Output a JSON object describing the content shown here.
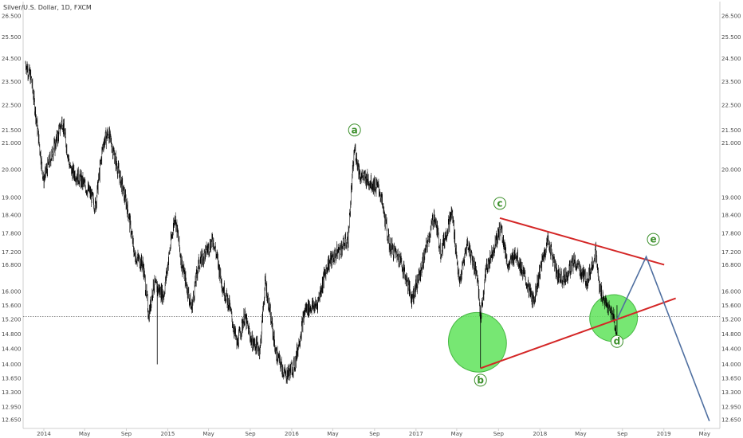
{
  "header": {
    "title": "Silver/U.S. Dollar, 1D, FXCM"
  },
  "colors": {
    "background": "#ffffff",
    "price_bars": "#000000",
    "trendline": "#d42626",
    "projection": "#4f6fa0",
    "ellipse_fill": "#5fe35a",
    "ellipse_stroke": "#47b743",
    "wave_label": "#3b8f2a",
    "price_line": "#444444",
    "axis_border": "#cfcfcf"
  },
  "chart_data": {
    "type": "line",
    "title": "Silver/U.S. Dollar, 1D, FXCM",
    "x_ticks": [
      "2014",
      "May",
      "Sep",
      "2015",
      "May",
      "Sep",
      "2016",
      "May",
      "Sep",
      "2017",
      "May",
      "Sep",
      "2018",
      "May",
      "Sep",
      "2019",
      "May"
    ],
    "x_tick_dates": [
      "2014-01-01",
      "2014-05-01",
      "2014-09-01",
      "2015-01-01",
      "2015-05-01",
      "2015-09-01",
      "2016-01-01",
      "2016-05-01",
      "2016-09-01",
      "2017-01-01",
      "2017-05-01",
      "2017-09-01",
      "2018-01-01",
      "2018-05-01",
      "2018-09-01",
      "2019-01-01",
      "2019-05-01"
    ],
    "y_ticks": [
      "26.500",
      "25.500",
      "24.500",
      "23.500",
      "22.500",
      "21.500",
      "21.000",
      "20.000",
      "19.000",
      "18.400",
      "17.800",
      "17.200",
      "16.800",
      "16.000",
      "15.600",
      "15.200",
      "14.800",
      "14.400",
      "14.000",
      "13.650",
      "13.300",
      "12.950",
      "12.650"
    ],
    "y_scale": "log",
    "ylim": [
      12.45,
      27.2
    ],
    "horizontal_price_line": 15.28,
    "series": [
      {
        "kind": "price",
        "points": [
          [
            "2013-11-08",
            24.3
          ],
          [
            "2013-11-25",
            23.6
          ],
          [
            "2013-12-10",
            21.9
          ],
          [
            "2013-12-31",
            19.6
          ],
          [
            "2014-01-20",
            20.4
          ],
          [
            "2014-02-10",
            21.2
          ],
          [
            "2014-02-24",
            21.9
          ],
          [
            "2014-03-20",
            20.0
          ],
          [
            "2014-04-15",
            19.7
          ],
          [
            "2014-05-15",
            19.2
          ],
          [
            "2014-06-02",
            18.7
          ],
          [
            "2014-06-25",
            21.0
          ],
          [
            "2014-07-10",
            21.4
          ],
          [
            "2014-08-01",
            20.3
          ],
          [
            "2014-09-05",
            18.6
          ],
          [
            "2014-09-25",
            17.1
          ],
          [
            "2014-10-20",
            16.8
          ],
          [
            "2014-11-06",
            15.3
          ],
          [
            "2014-11-20",
            16.2
          ],
          [
            "2014-12-20",
            15.9
          ],
          [
            "2015-01-22",
            18.4
          ],
          [
            "2015-02-10",
            16.9
          ],
          [
            "2015-03-12",
            15.5
          ],
          [
            "2015-04-01",
            16.8
          ],
          [
            "2015-05-15",
            17.6
          ],
          [
            "2015-06-10",
            16.2
          ],
          [
            "2015-07-01",
            15.6
          ],
          [
            "2015-07-24",
            14.5
          ],
          [
            "2015-08-15",
            15.3
          ],
          [
            "2015-09-05",
            14.6
          ],
          [
            "2015-09-30",
            14.4
          ],
          [
            "2015-10-15",
            16.3
          ],
          [
            "2015-11-15",
            14.3
          ],
          [
            "2015-12-14",
            13.7
          ],
          [
            "2016-01-10",
            14.0
          ],
          [
            "2016-02-10",
            15.5
          ],
          [
            "2016-03-15",
            15.6
          ],
          [
            "2016-04-15",
            16.8
          ],
          [
            "2016-05-15",
            17.2
          ],
          [
            "2016-06-15",
            17.6
          ],
          [
            "2016-07-04",
            20.8
          ],
          [
            "2016-07-20",
            19.8
          ],
          [
            "2016-08-15",
            19.6
          ],
          [
            "2016-09-15",
            19.3
          ],
          [
            "2016-10-15",
            17.4
          ],
          [
            "2016-11-15",
            17.0
          ],
          [
            "2016-12-20",
            15.8
          ],
          [
            "2017-01-15",
            16.6
          ],
          [
            "2017-02-24",
            18.4
          ],
          [
            "2017-03-15",
            17.2
          ],
          [
            "2017-04-17",
            18.5
          ],
          [
            "2017-05-09",
            16.2
          ],
          [
            "2017-06-01",
            17.5
          ],
          [
            "2017-06-30",
            16.5
          ],
          [
            "2017-07-10",
            15.2
          ],
          [
            "2017-07-25",
            16.6
          ],
          [
            "2017-09-08",
            18.0
          ],
          [
            "2017-09-30",
            16.7
          ],
          [
            "2017-10-20",
            17.2
          ],
          [
            "2017-12-12",
            15.7
          ],
          [
            "2018-01-10",
            17.0
          ],
          [
            "2018-01-25",
            17.6
          ],
          [
            "2018-02-20",
            16.5
          ],
          [
            "2018-03-15",
            16.4
          ],
          [
            "2018-04-12",
            16.9
          ],
          [
            "2018-05-20",
            16.3
          ],
          [
            "2018-06-14",
            17.2
          ],
          [
            "2018-06-25",
            16.1
          ],
          [
            "2018-07-15",
            15.6
          ],
          [
            "2018-08-06",
            15.3
          ],
          [
            "2018-08-16",
            14.6
          ]
        ]
      },
      {
        "kind": "trendline",
        "from": [
          "2017-09-05",
          18.3
        ],
        "to": [
          "2019-01-02",
          16.8
        ]
      },
      {
        "kind": "trendline",
        "from": [
          "2017-07-10",
          13.9
        ],
        "to": [
          "2019-02-05",
          15.8
        ]
      },
      {
        "kind": "projection",
        "points": [
          [
            "2018-08-16",
            15.2
          ],
          [
            "2018-11-10",
            17.05
          ],
          [
            "2019-05-15",
            12.62
          ]
        ]
      }
    ],
    "wave_labels": [
      {
        "text": "a",
        "date": "2016-07-04",
        "price": 21.5
      },
      {
        "text": "b",
        "date": "2017-07-10",
        "price": 13.6
      },
      {
        "text": "c",
        "date": "2017-09-05",
        "price": 18.8
      },
      {
        "text": "d",
        "date": "2018-08-16",
        "price": 14.6
      },
      {
        "text": "e",
        "date": "2018-12-01",
        "price": 17.6
      }
    ],
    "highlight_zones": [
      {
        "date": "2017-07-01",
        "price_low": 13.8,
        "price_high": 15.4
      },
      {
        "date": "2018-08-06",
        "price_low": 14.6,
        "price_high": 15.9
      }
    ]
  }
}
